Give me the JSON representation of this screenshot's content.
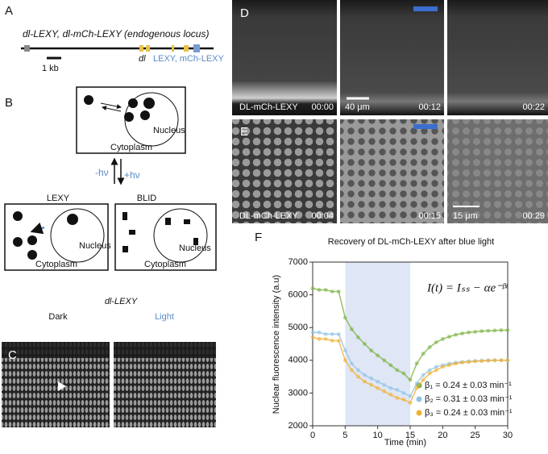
{
  "panels": {
    "A": {
      "label": "A",
      "title": "dl-LEXY, dl-mCh-LEXY (endogenous locus)",
      "scale": "1 kb",
      "gene": "dl",
      "tag": "LEXY, mCh-LEXY"
    },
    "B": {
      "label": "B",
      "top_nucleus": "Nucleus",
      "top_cytoplasm": "Cytoplasm",
      "minus": "-hν",
      "plus": "+hν",
      "left_title": "LEXY",
      "right_title": "BLID",
      "left_nucleus": "Nucleus",
      "left_cytoplasm": "Cytoplasm",
      "right_nucleus": "Nucleus",
      "right_cytoplasm": "Cytoplasm"
    },
    "C": {
      "label": "C",
      "title": "dl-LEXY",
      "dark": "Dark",
      "light": "Light"
    },
    "D": {
      "label": "D",
      "name": "DL-mCh-LEXY",
      "times": [
        "00:00",
        "00:12",
        "00:22"
      ],
      "scale": "40 μm"
    },
    "E": {
      "label": "E",
      "name": "DL-mCh-LEXY",
      "times": [
        "00:04",
        "00:15",
        "00:29"
      ],
      "scale": "15 μm"
    },
    "F": {
      "label": "F"
    }
  },
  "chart_data": {
    "type": "scatter",
    "title": "Recovery of DL-mCh-LEXY after blue light",
    "x_label": "Time (min)",
    "y_label": "Nuclear fluorescence intensity (a.u)",
    "annotation": "I(t) = Iₛₛ − αe⁻ᵝᵗ",
    "shaded_span": [
      5,
      15
    ],
    "shaded_color": "#dfe6f5",
    "xlim": [
      0,
      30
    ],
    "xticks": [
      0,
      5,
      10,
      15,
      20,
      25,
      30
    ],
    "ylim": [
      2000,
      7000
    ],
    "yticks": [
      2000,
      3000,
      4000,
      5000,
      6000,
      7000
    ],
    "x": [
      0,
      1,
      2,
      3,
      4,
      5,
      6,
      7,
      8,
      9,
      10,
      11,
      12,
      13,
      14,
      15,
      16,
      17,
      18,
      19,
      20,
      21,
      22,
      23,
      24,
      25,
      26,
      27,
      28,
      29,
      30
    ],
    "series": [
      {
        "name": "β₁ = 0.24 ± 0.03 min⁻¹",
        "color": "#7cb342",
        "values": [
          6200,
          6150,
          6150,
          6100,
          6100,
          5300,
          4950,
          4700,
          4500,
          4300,
          4150,
          4000,
          3850,
          3700,
          3600,
          3400,
          3900,
          4200,
          4400,
          4550,
          4650,
          4720,
          4780,
          4820,
          4850,
          4870,
          4890,
          4900,
          4910,
          4920,
          4920
        ]
      },
      {
        "name": "β₂ = 0.31 ± 0.03 min⁻¹",
        "color": "#8fc3e6",
        "values": [
          4850,
          4850,
          4800,
          4800,
          4800,
          4300,
          3900,
          3700,
          3550,
          3450,
          3350,
          3250,
          3150,
          3100,
          3000,
          2900,
          3300,
          3550,
          3700,
          3800,
          3850,
          3900,
          3930,
          3950,
          3970,
          3980,
          3990,
          4000,
          4000,
          4000,
          4000
        ]
      },
      {
        "name": "β₃ = 0.24 ± 0.03 min⁻¹",
        "color": "#f0b030",
        "values": [
          4700,
          4650,
          4650,
          4600,
          4600,
          4000,
          3700,
          3500,
          3350,
          3250,
          3150,
          3050,
          2950,
          2850,
          2800,
          2700,
          3150,
          3400,
          3600,
          3700,
          3800,
          3850,
          3900,
          3930,
          3950,
          3970,
          3980,
          3990,
          4000,
          4000,
          4000
        ]
      }
    ]
  }
}
